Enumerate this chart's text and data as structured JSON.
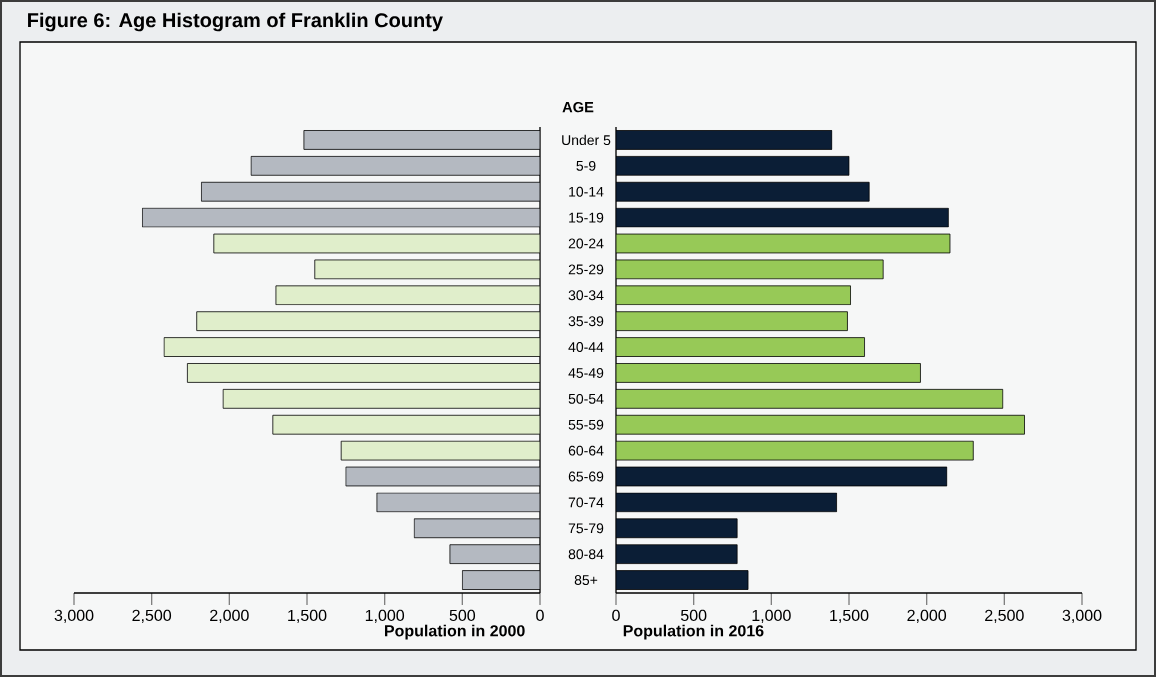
{
  "chart_data": [
    {
      "type": "bar",
      "orientation": "horizontal",
      "title": "Figure 6: Age Histogram of Franklin County",
      "ylabel": "AGE",
      "xlabel": "Population in 2000",
      "categories": [
        "Under 5",
        "5-9",
        "10-14",
        "15-19",
        "20-24",
        "25-29",
        "30-34",
        "35-39",
        "40-44",
        "45-49",
        "50-54",
        "55-59",
        "60-64",
        "65-69",
        "70-74",
        "75-79",
        "80-84",
        "85+"
      ],
      "values": [
        1520,
        1860,
        2180,
        2560,
        2100,
        1450,
        1700,
        2210,
        2420,
        2270,
        2040,
        1720,
        1280,
        1250,
        1050,
        810,
        580,
        500
      ],
      "colors": [
        "#b4b9c1",
        "#b4b9c1",
        "#b4b9c1",
        "#b4b9c1",
        "#e0eecb",
        "#e0eecb",
        "#e0eecb",
        "#e0eecb",
        "#e0eecb",
        "#e0eecb",
        "#e0eecb",
        "#e0eecb",
        "#e0eecb",
        "#b4b9c1",
        "#b4b9c1",
        "#b4b9c1",
        "#b4b9c1",
        "#b4b9c1"
      ],
      "xlim": [
        3000,
        0
      ],
      "xticks": [
        {
          "value": 3000,
          "label": "3,000"
        },
        {
          "value": 2500,
          "label": "2,500"
        },
        {
          "value": 2000,
          "label": "2,000"
        },
        {
          "value": 1500,
          "label": "1,500"
        },
        {
          "value": 1000,
          "label": "1,000"
        },
        500,
        0
      ]
    },
    {
      "type": "bar",
      "orientation": "horizontal",
      "xlabel": "Population in 2016",
      "categories": [
        null,
        null,
        null,
        null,
        null,
        null,
        null,
        null,
        null,
        null,
        null,
        null,
        null,
        null,
        null,
        null,
        null,
        null
      ],
      "values": [
        1390,
        1500,
        1630,
        2140,
        2150,
        1720,
        1510,
        1490,
        1600,
        1960,
        2490,
        2630,
        2300,
        2130,
        1420,
        780,
        780,
        850
      ],
      "colors": [
        "#0b1e36",
        "#0b1e36",
        "#0b1e36",
        "#0b1e36",
        "#97c957",
        "#97c957",
        "#97c957",
        "#97c957",
        "#97c957",
        "#97c957",
        "#97c957",
        "#97c957",
        "#97c957",
        "#0b1e36",
        "#0b1e36",
        "#0b1e36",
        "#0b1e36",
        "#0b1e36"
      ],
      "xlim": [
        0,
        3000
      ],
      "xticks": [
        0,
        500,
        {
          "value": 1000,
          "label": "1,000"
        },
        {
          "value": 1500,
          "label": "1,500"
        },
        {
          "value": 2000,
          "label": "2,000"
        },
        {
          "value": 2500,
          "label": "2,500"
        },
        {
          "value": 3000,
          "label": "3,000"
        }
      ]
    }
  ]
}
